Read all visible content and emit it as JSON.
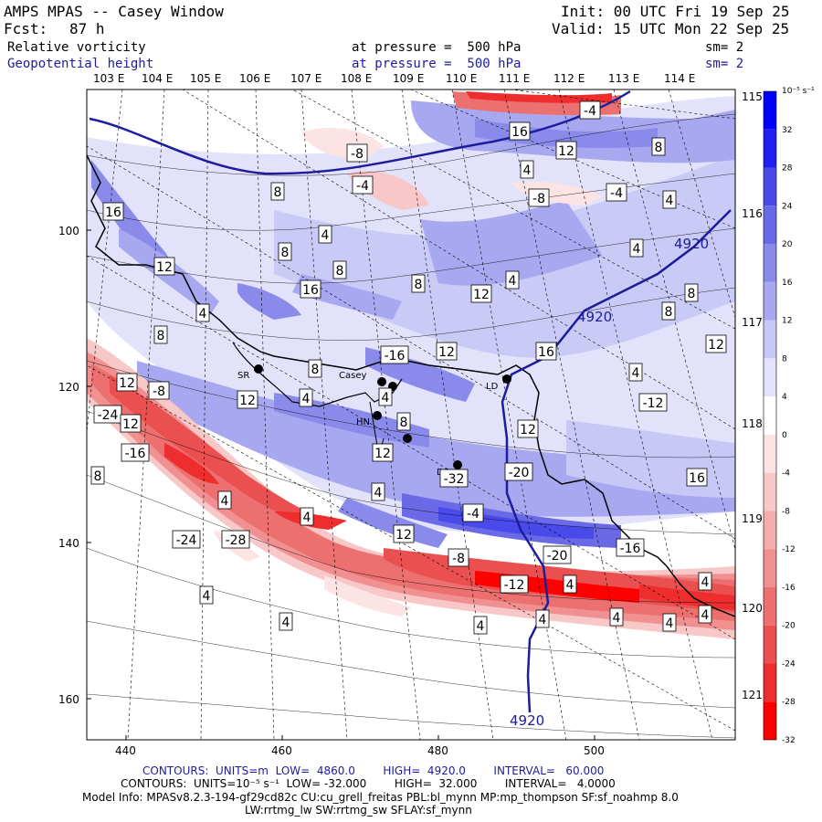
{
  "header": {
    "title": "AMPS MPAS -- Casey Window",
    "fcst_label": "Fcst:",
    "fcst_value": "87 h",
    "init": "Init: 00 UTC Fri 19 Sep 25",
    "valid": "Valid: 15 UTC Mon 22 Sep 25",
    "field1_name": "Relative vorticity",
    "field1_level": "at pressure =  500 hPa",
    "field1_sm": "sm= 2",
    "field2_name": "Geopotential height",
    "field2_level": "at pressure =  500 hPa",
    "field2_sm": "sm= 2"
  },
  "colorbar": {
    "unit": "10⁻⁵ s⁻¹",
    "levels": [
      "32",
      "28",
      "24",
      "20",
      "16",
      "12",
      "8",
      "4",
      "0",
      "-4",
      "-8",
      "-12",
      "-16",
      "-20",
      "-24",
      "-28",
      "-32"
    ],
    "colors": [
      "#0000ff",
      "#2020f0",
      "#4a4aea",
      "#6a6ae6",
      "#8a8aea",
      "#a8a8f0",
      "#c8c8f6",
      "#e2e2fa",
      "#ffffff",
      "#fce4e4",
      "#f8c8c8",
      "#f4acac",
      "#f09090",
      "#ec7070",
      "#ea5050",
      "#ee2e2e",
      "#ff0000"
    ]
  },
  "chart_data": {
    "type": "contour-map",
    "title": "AMPS MPAS -- Casey Window",
    "top_axis_labels": [
      "103 E",
      "104 E",
      "105 E",
      "106 E",
      "107 E",
      "108 E",
      "109 E",
      "110 E",
      "111 E",
      "112 E",
      "113 E",
      "114 E"
    ],
    "right_axis_labels": [
      "115 E",
      "116 E",
      "117 E",
      "118 E",
      "119 E",
      "120 E",
      "121 E"
    ],
    "x_ticks": [
      "440",
      "460",
      "480",
      "500"
    ],
    "y_ticks": [
      "100",
      "120",
      "140",
      "160"
    ],
    "stations": [
      "SR",
      "Casey",
      "LD",
      "HN",
      "DS"
    ],
    "height_contour_labels": [
      "4920",
      "4920",
      "4920"
    ],
    "vorticity_contour_labels": [
      "-4",
      "16",
      "12",
      "8",
      "-8",
      "-4",
      "4",
      "8",
      "-8",
      "-4",
      "4",
      "16",
      "4",
      "8",
      "4",
      "12",
      "8",
      "16",
      "4",
      "8",
      "12",
      "8",
      "8",
      "4",
      "12",
      "12",
      "8",
      "-16",
      "8",
      "16",
      "4",
      "12",
      "-8",
      "-24",
      "12",
      "4",
      "4",
      "12",
      "-12",
      "8",
      "12",
      "-16",
      "12",
      "16",
      "-20",
      "4",
      "4",
      "-4",
      "4",
      "8",
      "12",
      "-24",
      "-32",
      "-28",
      "-20",
      "-16",
      "-8",
      "-12",
      "4",
      "4",
      "4",
      "4",
      "4",
      "4",
      "4",
      "4",
      "4"
    ]
  },
  "footer": {
    "line1": "CONTOURS:  UNITS=m  LOW=  4860.0        HIGH=  4920.0        INTERVAL=   60.000",
    "line2": "CONTOURS:  UNITS=10⁻⁵ s⁻¹  LOW= -32.000        HIGH=  32.000        INTERVAL=   4.0000",
    "line3": "Model Info: MPASv8.2.3-194-gf29cd82c CU:cu_grell_freitas PBL:bl_mynn MP:mp_thompson SF:sf_noahmp 8.0",
    "line4": "LW:rrtmg_lw SW:rrtmg_sw SFLAY:sf_mynn"
  }
}
